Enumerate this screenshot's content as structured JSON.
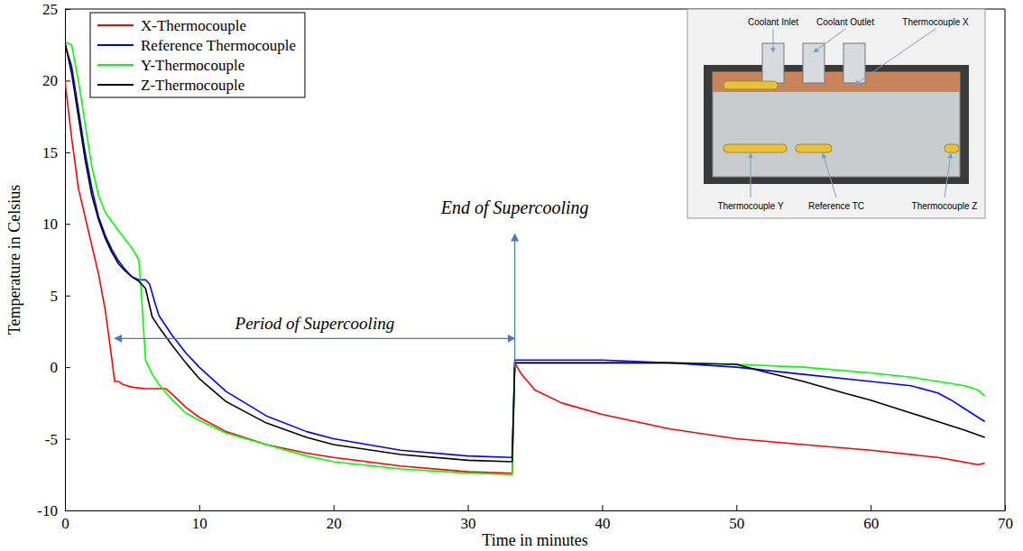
{
  "chart_data": {
    "type": "line",
    "x_label": "Time in minutes",
    "y_label": "Temperature in Celsius",
    "xlim": [
      0,
      70
    ],
    "xticks": [
      0,
      10,
      20,
      30,
      40,
      50,
      60,
      70
    ],
    "ylim": [
      -10,
      25
    ],
    "yticks": [
      -10,
      -5,
      0,
      5,
      10,
      15,
      20,
      25
    ],
    "grid": false,
    "legend": "upper left",
    "series": [
      {
        "name": "X-Thermocouple",
        "color": "#ff0000",
        "x": [
          0,
          0.5,
          1,
          1.5,
          2,
          2.5,
          3,
          3.5,
          3.7,
          4,
          4.3,
          5,
          6,
          7,
          7.5,
          8,
          9,
          10,
          12,
          15,
          18,
          20,
          25,
          30,
          33.3,
          33.5,
          34,
          35,
          37,
          40,
          45,
          50,
          55,
          60,
          65,
          68,
          68.5
        ],
        "values": [
          20,
          16,
          12.5,
          10.5,
          8.5,
          6.5,
          4,
          0.5,
          -1,
          -1,
          -1.2,
          -1.4,
          -1.5,
          -1.5,
          -1.5,
          -1.9,
          -2.8,
          -3.5,
          -4.5,
          -5.4,
          -6,
          -6.3,
          -6.9,
          -7.3,
          -7.4,
          0.3,
          -0.5,
          -1.6,
          -2.5,
          -3.3,
          -4.3,
          -5,
          -5.4,
          -5.8,
          -6.3,
          -6.8,
          -6.7
        ]
      },
      {
        "name": "Reference Thermocouple",
        "color": "#0000ff",
        "x": [
          0,
          0.5,
          1,
          1.5,
          2,
          2.5,
          3,
          3.5,
          4,
          4.5,
          5,
          5.5,
          6,
          6.3,
          6.7,
          7,
          8,
          9,
          10,
          12,
          15,
          18,
          20,
          25,
          30,
          33.3,
          33.5,
          35,
          40,
          45,
          50,
          55,
          60,
          63,
          65,
          66,
          67,
          68.5
        ],
        "values": [
          22.5,
          21,
          18,
          15,
          12.5,
          10.5,
          9.2,
          8.2,
          7.4,
          6.8,
          6.3,
          6.1,
          6.1,
          5.8,
          4.5,
          3.6,
          2.2,
          1,
          0,
          -1.7,
          -3.4,
          -4.5,
          -5,
          -5.8,
          -6.2,
          -6.3,
          0.5,
          0.5,
          0.5,
          0.3,
          0,
          -0.5,
          -1,
          -1.3,
          -1.8,
          -2.3,
          -2.9,
          -3.8
        ]
      },
      {
        "name": "Y-Thermocouple",
        "color": "#00ff00",
        "x": [
          0,
          0.5,
          1,
          1.5,
          2,
          2.5,
          3,
          4,
          5,
          5.5,
          5.7,
          6,
          6.5,
          7,
          8,
          9,
          10,
          12,
          15,
          18,
          20,
          25,
          30,
          33.3,
          33.5,
          35,
          40,
          45,
          50,
          55,
          60,
          63,
          65,
          67,
          68,
          68.5
        ],
        "values": [
          22.7,
          22.5,
          20,
          17,
          14,
          12,
          10.8,
          9.5,
          8.3,
          7.5,
          5,
          0.5,
          -0.5,
          -1.2,
          -2.3,
          -3.2,
          -3.7,
          -4.6,
          -5.4,
          -6.2,
          -6.6,
          -7.1,
          -7.4,
          -7.5,
          0.3,
          0.3,
          0.3,
          0.3,
          0.2,
          0,
          -0.4,
          -0.7,
          -1,
          -1.3,
          -1.6,
          -2
        ]
      },
      {
        "name": "Z-Thermocouple",
        "color": "#000000",
        "x": [
          0,
          0.5,
          1,
          1.5,
          2,
          2.5,
          3,
          3.5,
          4,
          4.5,
          5,
          5.5,
          6,
          6.5,
          7,
          8,
          9,
          10,
          12,
          15,
          18,
          20,
          25,
          30,
          33.3,
          33.5,
          35,
          40,
          45,
          50,
          52,
          55,
          58,
          60,
          63,
          65,
          67,
          68.5
        ],
        "values": [
          22.7,
          20.5,
          17.5,
          14.5,
          12,
          10.3,
          9,
          8,
          7.2,
          6.7,
          6.3,
          6,
          5.5,
          3.5,
          2.8,
          1.5,
          0.3,
          -0.8,
          -2.4,
          -3.9,
          -4.9,
          -5.4,
          -6.1,
          -6.5,
          -6.6,
          0.3,
          0.3,
          0.3,
          0.3,
          0.2,
          -0.3,
          -1,
          -1.8,
          -2.3,
          -3.2,
          -3.8,
          -4.4,
          -4.9
        ]
      }
    ],
    "annotations": [
      {
        "text": "End of Supercooling",
        "x": 33.5,
        "y": [
          0,
          9.3
        ]
      },
      {
        "text": "Period of Supercooling",
        "x": [
          3.7,
          33.5
        ],
        "y": 2
      }
    ],
    "inset_labels": [
      "Coolant Inlet",
      "Coolant Outlet",
      "Thermocouple X",
      "Thermocouple Y",
      "Reference TC",
      "Thermocouple Z"
    ]
  }
}
